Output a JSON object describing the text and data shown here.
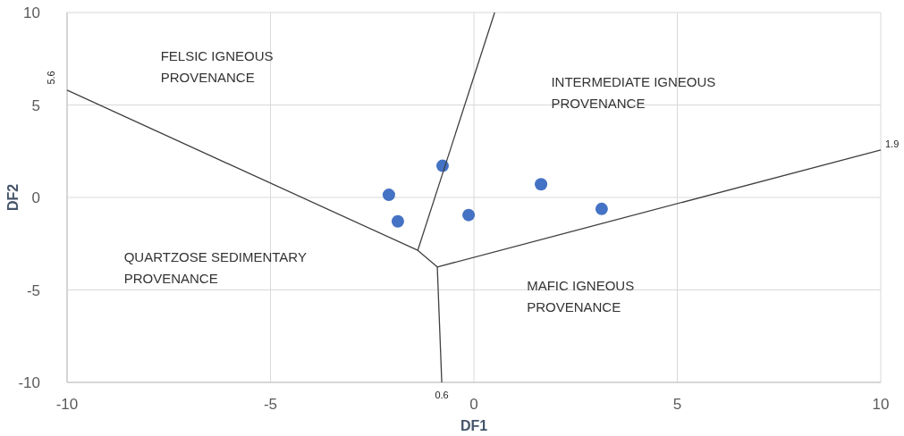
{
  "chart_data": {
    "type": "scatter",
    "xlabel": "DF1",
    "ylabel": "DF2",
    "xlim": [
      -10,
      10
    ],
    "ylim": [
      -10,
      10
    ],
    "xticks": [
      -10,
      -5,
      0,
      5,
      10
    ],
    "yticks": [
      -10,
      -5,
      0,
      5,
      10
    ],
    "grid": true,
    "series": [
      {
        "color": "#4472c4",
        "marker": "circle",
        "x": [
          -2.09,
          -0.77,
          -1.87,
          -0.13,
          1.65,
          3.14
        ],
        "values": [
          0.14,
          1.71,
          -1.29,
          -0.95,
          0.71,
          -0.62
        ]
      },
      {
        "type": "line",
        "color": "#404040",
        "marker": "none",
        "x": [
          -10,
          -1.38,
          -0.9,
          10
        ],
        "values": [
          5.8,
          -2.86,
          -3.76,
          2.57
        ]
      },
      {
        "type": "line",
        "color": "#404040",
        "marker": "none",
        "x": [
          -1.38,
          0.51
        ],
        "values": [
          -2.86,
          10
        ]
      },
      {
        "type": "line",
        "color": "#404040",
        "marker": "none",
        "x": [
          -0.9,
          -0.79
        ],
        "values": [
          -3.76,
          -10
        ]
      }
    ],
    "annotations": [
      "FELSIC IGNEOUS\nPROVENANCE",
      "INTERMEDIATE IGNEOUS\nPROVENANCE",
      "QUARTZOSE SEDIMENTARY\nPROVENANCE",
      "MAFIC IGNEOUS\nPROVENANCE",
      {
        "text": "5.6",
        "x": -10,
        "y": 5.8
      },
      {
        "text": "1.9",
        "x": 10,
        "y": 2.7
      },
      {
        "text": "0.6",
        "x": -0.79,
        "y": -10
      }
    ]
  }
}
